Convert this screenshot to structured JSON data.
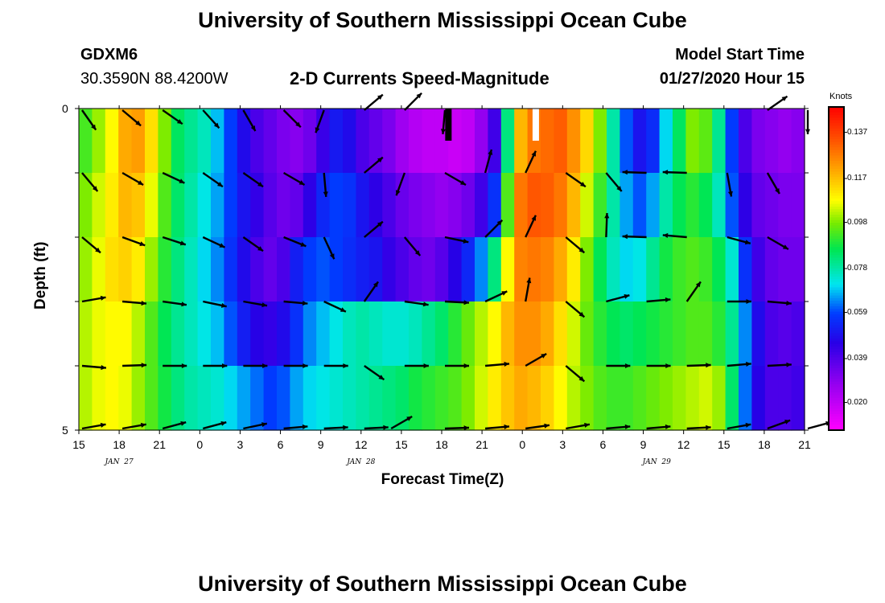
{
  "page": {
    "title_top": "University of Southern Mississippi Ocean Cube",
    "title_bottom": "University of Southern Mississippi Ocean Cube"
  },
  "header": {
    "station_id": "GDXM6",
    "station_coords": "30.3590N 88.4200W",
    "chart_title": "2-D Currents Speed-Magnitude",
    "model_label": "Model Start Time",
    "model_time": "01/27/2020 Hour 15"
  },
  "chart_data": {
    "type": "heatmap",
    "title": "2-D Currents Speed-Magnitude",
    "xlabel": "Forecast Time(Z)",
    "ylabel": "Depth (ft)",
    "x_tick_labels": [
      "15",
      "18",
      "21",
      "0",
      "3",
      "6",
      "9",
      "12",
      "15",
      "18",
      "21",
      "0",
      "3",
      "6",
      "9",
      "12",
      "15",
      "18",
      "21"
    ],
    "date_labels": [
      {
        "label": "JAN  27",
        "hour": 3
      },
      {
        "label": "JAN  28",
        "hour": 21
      },
      {
        "label": "JAN  29",
        "hour": 43
      }
    ],
    "x_range_hours": [
      0,
      54
    ],
    "y_tick_labels": [
      "0",
      "5"
    ],
    "ylim": [
      0,
      5
    ],
    "depth_rows": 5,
    "colorbar": {
      "unit": "Knots",
      "min": 0.008,
      "max": 0.148,
      "ticks": [
        "0.137",
        "0.117",
        "0.098",
        "0.078",
        "0.059",
        "0.039",
        "0.020"
      ]
    },
    "series": [
      {
        "name": "speed_depth_0",
        "values": [
          0.093,
          0.1,
          0.108,
          0.12,
          0.122,
          0.112,
          0.098,
          0.085,
          0.08,
          0.076,
          0.068,
          0.058,
          0.048,
          0.04,
          0.036,
          0.032,
          0.03,
          0.034,
          0.043,
          0.051,
          0.048,
          0.04,
          0.036,
          0.032,
          0.026,
          0.022,
          0.02,
          0.02,
          0.018,
          0.02,
          0.028,
          0.042,
          0.082,
          0.118,
          0.128,
          0.13,
          0.132,
          0.124,
          0.113,
          0.098,
          0.078,
          0.06,
          0.05,
          0.055,
          0.07,
          0.085,
          0.098,
          0.095,
          0.08,
          0.058,
          0.04,
          0.032,
          0.03,
          0.028,
          0.03
        ]
      },
      {
        "name": "speed_depth_1",
        "values": [
          0.098,
          0.104,
          0.11,
          0.118,
          0.116,
          0.106,
          0.094,
          0.084,
          0.078,
          0.072,
          0.066,
          0.058,
          0.05,
          0.044,
          0.038,
          0.034,
          0.036,
          0.045,
          0.054,
          0.058,
          0.056,
          0.05,
          0.045,
          0.04,
          0.035,
          0.032,
          0.03,
          0.028,
          0.03,
          0.034,
          0.042,
          0.056,
          0.094,
          0.128,
          0.133,
          0.132,
          0.128,
          0.118,
          0.104,
          0.092,
          0.078,
          0.066,
          0.06,
          0.066,
          0.078,
          0.086,
          0.09,
          0.086,
          0.076,
          0.06,
          0.045,
          0.036,
          0.034,
          0.032,
          0.032
        ]
      },
      {
        "name": "speed_depth_2",
        "values": [
          0.1,
          0.106,
          0.112,
          0.114,
          0.11,
          0.1,
          0.09,
          0.082,
          0.076,
          0.07,
          0.064,
          0.056,
          0.048,
          0.04,
          0.036,
          0.04,
          0.052,
          0.058,
          0.06,
          0.058,
          0.055,
          0.052,
          0.05,
          0.044,
          0.04,
          0.036,
          0.034,
          0.038,
          0.046,
          0.054,
          0.064,
          0.082,
          0.108,
          0.126,
          0.128,
          0.126,
          0.12,
          0.11,
          0.098,
          0.086,
          0.076,
          0.07,
          0.072,
          0.08,
          0.088,
          0.092,
          0.094,
          0.092,
          0.086,
          0.074,
          0.056,
          0.042,
          0.036,
          0.034,
          0.034
        ]
      },
      {
        "name": "speed_depth_3",
        "values": [
          0.102,
          0.106,
          0.108,
          0.108,
          0.102,
          0.094,
          0.086,
          0.08,
          0.076,
          0.072,
          0.068,
          0.06,
          0.052,
          0.046,
          0.044,
          0.048,
          0.056,
          0.064,
          0.068,
          0.072,
          0.076,
          0.078,
          0.076,
          0.074,
          0.074,
          0.076,
          0.08,
          0.084,
          0.09,
          0.096,
          0.102,
          0.108,
          0.118,
          0.124,
          0.124,
          0.12,
          0.112,
          0.104,
          0.096,
          0.09,
          0.086,
          0.084,
          0.086,
          0.088,
          0.09,
          0.092,
          0.094,
          0.094,
          0.09,
          0.08,
          0.064,
          0.048,
          0.04,
          0.038,
          0.04
        ]
      },
      {
        "name": "speed_depth_4",
        "values": [
          0.102,
          0.106,
          0.108,
          0.106,
          0.1,
          0.094,
          0.088,
          0.082,
          0.078,
          0.076,
          0.074,
          0.07,
          0.066,
          0.062,
          0.058,
          0.06,
          0.066,
          0.07,
          0.072,
          0.074,
          0.076,
          0.078,
          0.08,
          0.082,
          0.084,
          0.088,
          0.09,
          0.092,
          0.094,
          0.098,
          0.104,
          0.11,
          0.116,
          0.12,
          0.118,
          0.114,
          0.108,
          0.102,
          0.098,
          0.094,
          0.092,
          0.092,
          0.094,
          0.096,
          0.098,
          0.1,
          0.102,
          0.104,
          0.1,
          0.084,
          0.062,
          0.046,
          0.04,
          0.04,
          0.042
        ]
      }
    ],
    "vectors": [
      [
        {
          "h": 0,
          "a": 55
        },
        {
          "h": 3,
          "a": 40
        },
        {
          "h": 6,
          "a": 35
        },
        {
          "h": 9,
          "a": 48
        },
        {
          "h": 12,
          "a": 60
        },
        {
          "h": 15,
          "a": 45
        },
        {
          "h": 18,
          "a": 110
        },
        {
          "h": 21,
          "a": -40
        },
        {
          "h": 24,
          "a": -45
        },
        {
          "h": 27,
          "a": 95
        },
        {
          "h": 51,
          "a": -35
        },
        {
          "h": 54,
          "a": 90
        }
      ],
      [
        {
          "h": 0,
          "a": 50
        },
        {
          "h": 3,
          "a": 30
        },
        {
          "h": 6,
          "a": 25
        },
        {
          "h": 9,
          "a": 35
        },
        {
          "h": 12,
          "a": 35
        },
        {
          "h": 15,
          "a": 30
        },
        {
          "h": 18,
          "a": 85
        },
        {
          "h": 21,
          "a": -40
        },
        {
          "h": 24,
          "a": 110
        },
        {
          "h": 27,
          "a": 30
        },
        {
          "h": 30,
          "a": -75
        },
        {
          "h": 33,
          "a": -65
        },
        {
          "h": 36,
          "a": 35
        },
        {
          "h": 39,
          "a": 50
        },
        {
          "h": 42,
          "a": 182
        },
        {
          "h": 45,
          "a": 182
        },
        {
          "h": 48,
          "a": 80
        },
        {
          "h": 51,
          "a": 60
        }
      ],
      [
        {
          "h": 0,
          "a": 40
        },
        {
          "h": 3,
          "a": 20
        },
        {
          "h": 6,
          "a": 18
        },
        {
          "h": 9,
          "a": 25
        },
        {
          "h": 12,
          "a": 35
        },
        {
          "h": 15,
          "a": 22
        },
        {
          "h": 18,
          "a": 65
        },
        {
          "h": 21,
          "a": -40
        },
        {
          "h": 24,
          "a": 50
        },
        {
          "h": 27,
          "a": 12
        },
        {
          "h": 30,
          "a": -45
        },
        {
          "h": 33,
          "a": -65
        },
        {
          "h": 36,
          "a": 40
        },
        {
          "h": 39,
          "a": -88
        },
        {
          "h": 42,
          "a": 182
        },
        {
          "h": 45,
          "a": 185
        },
        {
          "h": 48,
          "a": 15
        },
        {
          "h": 51,
          "a": 30
        }
      ],
      [
        {
          "h": 0,
          "a": -10
        },
        {
          "h": 3,
          "a": 5
        },
        {
          "h": 6,
          "a": 8
        },
        {
          "h": 9,
          "a": 12
        },
        {
          "h": 12,
          "a": 10
        },
        {
          "h": 15,
          "a": 5
        },
        {
          "h": 18,
          "a": 25
        },
        {
          "h": 21,
          "a": -55
        },
        {
          "h": 24,
          "a": 8
        },
        {
          "h": 27,
          "a": 3
        },
        {
          "h": 30,
          "a": -25
        },
        {
          "h": 33,
          "a": -80
        },
        {
          "h": 36,
          "a": 40
        },
        {
          "h": 39,
          "a": -15
        },
        {
          "h": 42,
          "a": -5
        },
        {
          "h": 45,
          "a": -55
        },
        {
          "h": 48,
          "a": 0
        },
        {
          "h": 51,
          "a": 5
        }
      ],
      [
        {
          "h": 0,
          "a": 5
        },
        {
          "h": 3,
          "a": -2
        },
        {
          "h": 6,
          "a": 0
        },
        {
          "h": 9,
          "a": 0
        },
        {
          "h": 12,
          "a": 0
        },
        {
          "h": 15,
          "a": 0
        },
        {
          "h": 18,
          "a": 0
        },
        {
          "h": 21,
          "a": 35
        },
        {
          "h": 24,
          "a": 0
        },
        {
          "h": 27,
          "a": 0
        },
        {
          "h": 30,
          "a": -5
        },
        {
          "h": 33,
          "a": -30
        },
        {
          "h": 36,
          "a": 40
        },
        {
          "h": 39,
          "a": 0
        },
        {
          "h": 42,
          "a": 0
        },
        {
          "h": 45,
          "a": -2
        },
        {
          "h": 48,
          "a": -5
        },
        {
          "h": 51,
          "a": -3
        }
      ],
      [
        {
          "h": 0,
          "a": -10
        },
        {
          "h": 3,
          "a": -10
        },
        {
          "h": 6,
          "a": -15
        },
        {
          "h": 9,
          "a": -15
        },
        {
          "h": 12,
          "a": -12
        },
        {
          "h": 15,
          "a": -5
        },
        {
          "h": 18,
          "a": -3
        },
        {
          "h": 21,
          "a": -3
        },
        {
          "h": 23,
          "a": -30
        },
        {
          "h": 27,
          "a": -2
        },
        {
          "h": 30,
          "a": -5
        },
        {
          "h": 33,
          "a": -8
        },
        {
          "h": 36,
          "a": -10
        },
        {
          "h": 39,
          "a": -5
        },
        {
          "h": 42,
          "a": -5
        },
        {
          "h": 45,
          "a": -3
        },
        {
          "h": 48,
          "a": -10
        },
        {
          "h": 51,
          "a": -20
        },
        {
          "h": 54,
          "a": -15
        }
      ]
    ],
    "markers": [
      {
        "hour": 27.5,
        "color": "#000000"
      },
      {
        "hour": 34,
        "color": "#ffffff"
      }
    ]
  }
}
